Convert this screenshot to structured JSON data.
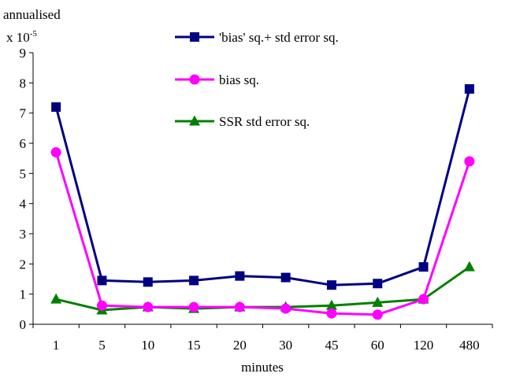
{
  "chart_data": {
    "type": "line",
    "xlabel": "minutes",
    "ylabel_line1": "annualised",
    "ylabel_scale": "x 10",
    "ylabel_exponent": "-5",
    "categories": [
      "1",
      "5",
      "10",
      "15",
      "20",
      "30",
      "45",
      "60",
      "120",
      "480"
    ],
    "ylim": [
      0,
      9
    ],
    "yticks": [
      "0",
      "1",
      "2",
      "3",
      "4",
      "5",
      "6",
      "7",
      "8",
      "9"
    ],
    "grid": false,
    "legend_position": "top-center",
    "series": [
      {
        "name": "'bias' sq.+ std error sq.",
        "marker": "square",
        "color": "#000080",
        "values": [
          7.2,
          1.45,
          1.4,
          1.45,
          1.6,
          1.55,
          1.3,
          1.35,
          1.9,
          7.8
        ]
      },
      {
        "name": "bias sq.",
        "marker": "circle",
        "color": "#FF00FF",
        "values": [
          5.7,
          0.62,
          0.57,
          0.57,
          0.57,
          0.52,
          0.36,
          0.32,
          0.83,
          5.4
        ]
      },
      {
        "name": "SSR std error sq.",
        "marker": "triangle",
        "color": "#008000",
        "values": [
          0.83,
          0.47,
          0.57,
          0.52,
          0.57,
          0.57,
          0.62,
          0.72,
          0.83,
          1.9
        ]
      }
    ]
  }
}
